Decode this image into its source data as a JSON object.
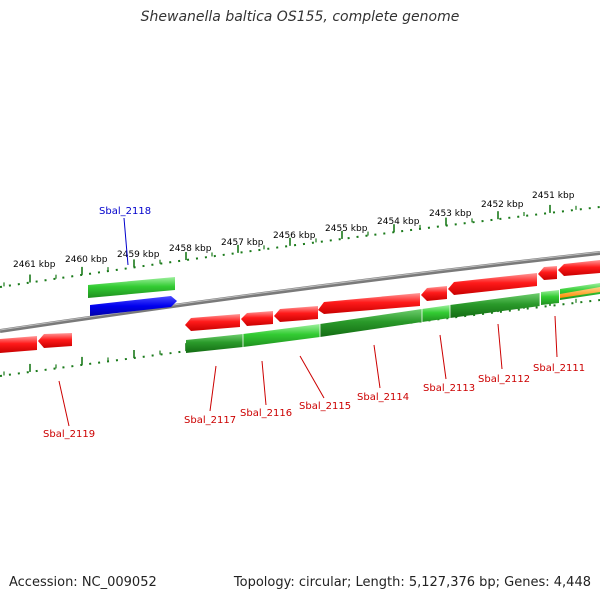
{
  "title": "Shewanella baltica OS155, complete genome",
  "footer": {
    "accession": "Accession: NC_009052",
    "stats": "Topology: circular; Length: 5,127,376 bp; Genes: 4,448"
  },
  "ticks": [
    "2461 kbp",
    "2460 kbp",
    "2459 kbp",
    "2458 kbp",
    "2457 kbp",
    "2456 kbp",
    "2455 kbp",
    "2454 kbp",
    "2453 kbp",
    "2452 kbp",
    "2451 kbp"
  ],
  "genes": {
    "highlighted": "Sbal_2118",
    "labels": [
      "Sbal_2119",
      "Sbal_2117",
      "Sbal_2116",
      "Sbal_2115",
      "Sbal_2114",
      "Sbal_2113",
      "Sbal_2112",
      "Sbal_2111"
    ]
  },
  "colors": {
    "forward_gene": "#ff0000",
    "reverse_gene": "#2eb82e",
    "highlight_gene": "#0000ee",
    "backbone": "#7a7a7a",
    "tick": "#1a7a1a",
    "label_red": "#cc0000",
    "label_blue": "#0000cc"
  }
}
